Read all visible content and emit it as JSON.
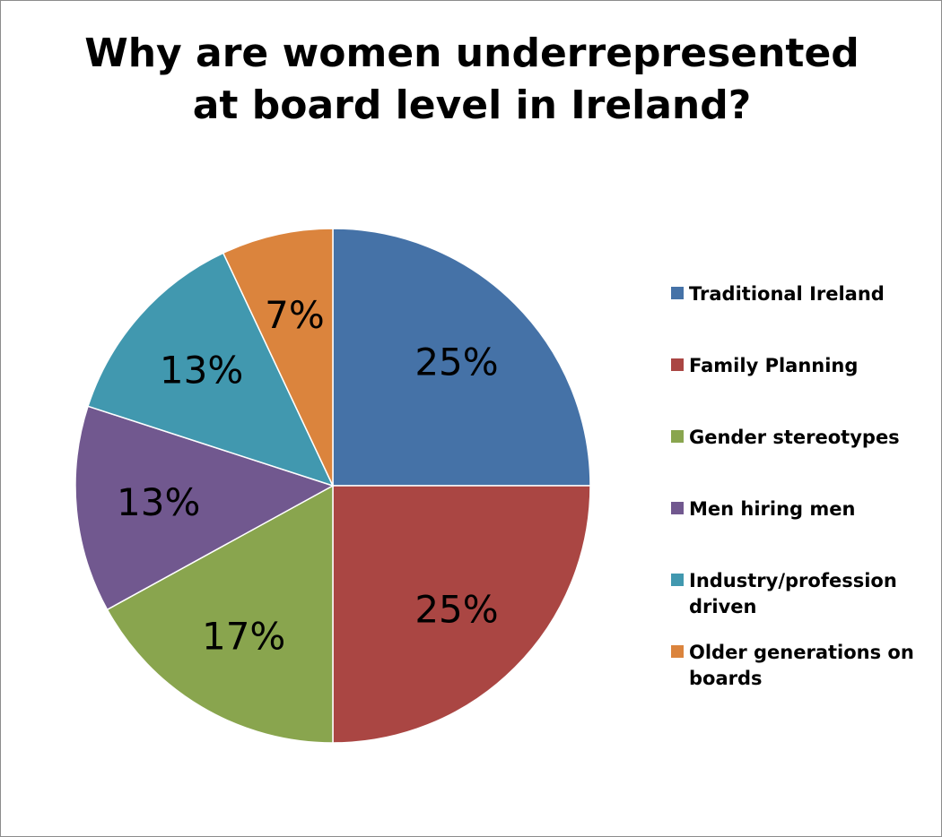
{
  "chart_data": {
    "type": "pie",
    "title": "Why are women underrepresented at board level in Ireland?",
    "title_lines": [
      "Why are women underrepresented",
      "at board level in Ireland?"
    ],
    "categories": [
      "Traditional Ireland",
      "Family Planning",
      "Gender stereotypes",
      "Men hiring men",
      "Industry/profession driven",
      "Older generations on boards"
    ],
    "values": [
      25,
      25,
      17,
      13,
      13,
      7
    ],
    "labels": [
      "25%",
      "25%",
      "17%",
      "13%",
      "13%",
      "7%"
    ],
    "colors": [
      "#4572A7",
      "#AA4643",
      "#89A54E",
      "#71588F",
      "#4198AF",
      "#DB843D"
    ],
    "legend_position": "right",
    "legend": [
      {
        "lines": [
          "Traditional Ireland"
        ],
        "color": "#4572A7"
      },
      {
        "lines": [
          "Family Planning"
        ],
        "color": "#AA4643"
      },
      {
        "lines": [
          "Gender stereotypes"
        ],
        "color": "#89A54E"
      },
      {
        "lines": [
          "Men hiring men"
        ],
        "color": "#71588F"
      },
      {
        "lines": [
          "Industry/profession",
          "driven"
        ],
        "color": "#4198AF"
      },
      {
        "lines": [
          "Older generations on",
          "boards"
        ],
        "color": "#DB843D"
      }
    ]
  }
}
